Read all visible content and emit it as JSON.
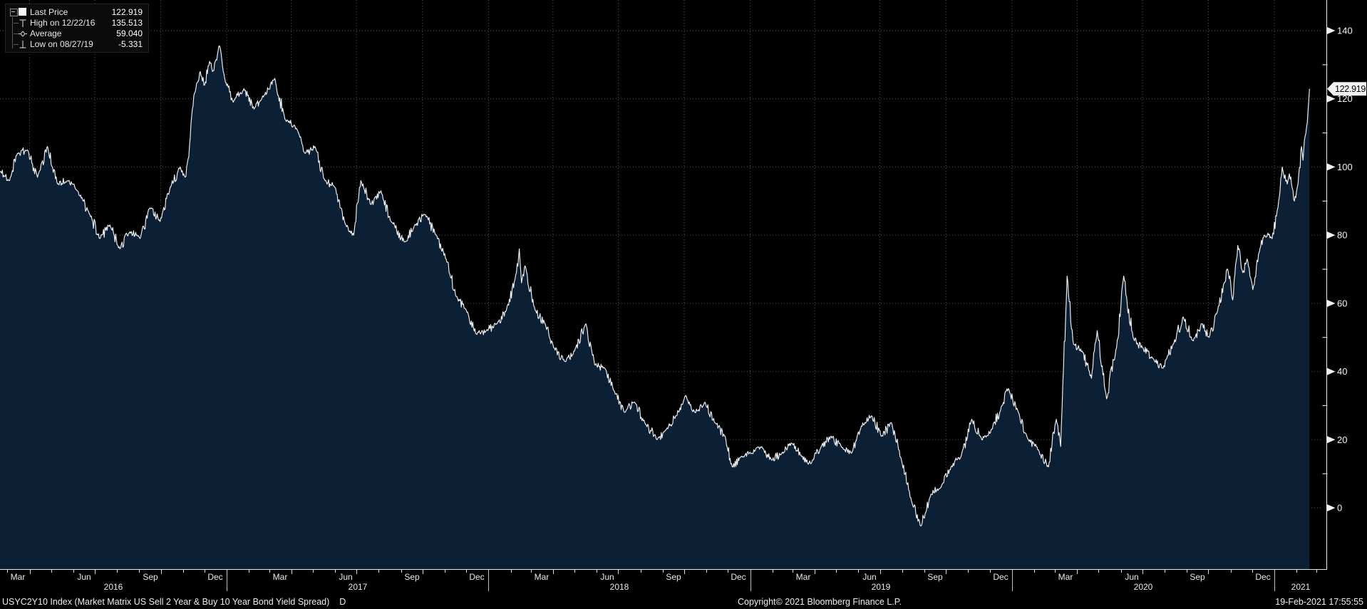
{
  "accent_colors": {
    "area_fill": "#0c2035",
    "line": "#f0f2f4",
    "grid": "#54585e",
    "axis": "#e8e8e8",
    "tag_bg": "#f2f2f2",
    "tag_text": "#000000"
  },
  "legend": {
    "rows": [
      {
        "glyph": "square-marker",
        "label": "Last Price",
        "value": "122.919"
      },
      {
        "glyph": "high-tack-icon",
        "label": "High on 12/22/16",
        "value": "135.513"
      },
      {
        "glyph": "average-diamond-icon",
        "label": "Average",
        "value": "59.040"
      },
      {
        "glyph": "low-tack-icon",
        "label": "Low on 08/27/19",
        "value": "-5.331"
      }
    ]
  },
  "price_tag": {
    "value": "122.919"
  },
  "y_axis": {
    "tick_labels": [
      0,
      20,
      40,
      60,
      80,
      100,
      120,
      140
    ]
  },
  "x_axis": {
    "month_labels": [
      {
        "text": "Mar",
        "date": "2016-03-16"
      },
      {
        "text": "Jun",
        "date": "2016-06-16"
      },
      {
        "text": "Sep",
        "date": "2016-09-16"
      },
      {
        "text": "Dec",
        "date": "2016-12-16"
      },
      {
        "text": "Mar",
        "date": "2017-03-16"
      },
      {
        "text": "Jun",
        "date": "2017-06-16"
      },
      {
        "text": "Sep",
        "date": "2017-09-16"
      },
      {
        "text": "Dec",
        "date": "2017-12-16"
      },
      {
        "text": "Mar",
        "date": "2018-03-16"
      },
      {
        "text": "Jun",
        "date": "2018-06-16"
      },
      {
        "text": "Sep",
        "date": "2018-09-16"
      },
      {
        "text": "Dec",
        "date": "2018-12-16"
      },
      {
        "text": "Mar",
        "date": "2019-03-16"
      },
      {
        "text": "Jun",
        "date": "2019-06-16"
      },
      {
        "text": "Sep",
        "date": "2019-09-16"
      },
      {
        "text": "Dec",
        "date": "2019-12-16"
      },
      {
        "text": "Mar",
        "date": "2020-03-16"
      },
      {
        "text": "Jun",
        "date": "2020-06-16"
      },
      {
        "text": "Sep",
        "date": "2020-09-16"
      },
      {
        "text": "Dec",
        "date": "2020-12-16"
      }
    ],
    "year_labels": [
      "2016",
      "2017",
      "2018",
      "2019",
      "2020",
      "2021"
    ]
  },
  "statusbar": {
    "left": "USYC2Y10 Index (Market Matrix US Sell 2 Year & Buy 10 Year Bond Yield Spread)",
    "periodicity": "D",
    "copyright": "Copyright© 2021 Bloomberg Finance L.P.",
    "timestamp": "19-Feb-2021 17:55:55"
  },
  "chart_data": {
    "type": "area",
    "title": "USYC2Y10 Index (Market Matrix US Sell 2 Year & Buy 10 Year Bond Yield Spread)",
    "xlabel": "",
    "ylabel": "",
    "x_range": [
      "2016-02-19",
      "2021-02-19"
    ],
    "ylim": [
      -18,
      149
    ],
    "y_ticks": [
      0,
      20,
      40,
      60,
      80,
      100,
      120,
      140
    ],
    "grid": "dotted, horizontal at ticks and vertical at quarter boundaries",
    "legend_position": "top-left",
    "stats": {
      "last": 122.919,
      "high": {
        "date": "12/22/16",
        "value": 135.513
      },
      "average": 59.04,
      "low": {
        "date": "08/27/19",
        "value": -5.331
      }
    },
    "series": [
      {
        "name": "Last Price",
        "style": "white line with dark navy area fill",
        "points": [
          [
            "2016-02-19",
            99
          ],
          [
            "2016-03-04",
            96
          ],
          [
            "2016-03-15",
            104
          ],
          [
            "2016-03-29",
            105
          ],
          [
            "2016-04-12",
            97
          ],
          [
            "2016-04-26",
            106
          ],
          [
            "2016-05-10",
            95
          ],
          [
            "2016-05-24",
            96
          ],
          [
            "2016-06-07",
            93
          ],
          [
            "2016-06-24",
            86
          ],
          [
            "2016-07-08",
            79
          ],
          [
            "2016-07-22",
            83
          ],
          [
            "2016-08-05",
            76
          ],
          [
            "2016-08-19",
            81
          ],
          [
            "2016-09-02",
            79
          ],
          [
            "2016-09-16",
            88
          ],
          [
            "2016-09-30",
            84
          ],
          [
            "2016-10-14",
            94
          ],
          [
            "2016-10-28",
            100
          ],
          [
            "2016-11-04",
            97
          ],
          [
            "2016-11-09",
            103
          ],
          [
            "2016-11-14",
            117
          ],
          [
            "2016-11-18",
            122
          ],
          [
            "2016-11-25",
            128
          ],
          [
            "2016-12-01",
            124
          ],
          [
            "2016-12-08",
            131
          ],
          [
            "2016-12-12",
            128
          ],
          [
            "2016-12-16",
            131
          ],
          [
            "2016-12-22",
            135.513
          ],
          [
            "2016-12-30",
            125
          ],
          [
            "2017-01-10",
            119
          ],
          [
            "2017-01-25",
            123
          ],
          [
            "2017-02-08",
            117
          ],
          [
            "2017-02-22",
            121
          ],
          [
            "2017-03-09",
            126
          ],
          [
            "2017-03-23",
            114
          ],
          [
            "2017-04-06",
            112
          ],
          [
            "2017-04-20",
            104
          ],
          [
            "2017-05-04",
            106
          ],
          [
            "2017-05-18",
            96
          ],
          [
            "2017-06-01",
            94
          ],
          [
            "2017-06-16",
            83
          ],
          [
            "2017-06-27",
            80
          ],
          [
            "2017-07-07",
            96
          ],
          [
            "2017-07-21",
            89
          ],
          [
            "2017-08-04",
            93
          ],
          [
            "2017-08-18",
            84
          ],
          [
            "2017-09-06",
            78
          ],
          [
            "2017-09-20",
            83
          ],
          [
            "2017-10-05",
            86
          ],
          [
            "2017-10-20",
            80
          ],
          [
            "2017-11-03",
            73
          ],
          [
            "2017-11-17",
            62
          ],
          [
            "2017-12-01",
            58
          ],
          [
            "2017-12-15",
            51
          ],
          [
            "2017-12-29",
            52
          ],
          [
            "2018-01-12",
            54
          ],
          [
            "2018-01-26",
            58
          ],
          [
            "2018-02-09",
            69
          ],
          [
            "2018-02-13",
            76
          ],
          [
            "2018-02-16",
            66
          ],
          [
            "2018-02-21",
            71
          ],
          [
            "2018-03-07",
            58
          ],
          [
            "2018-03-21",
            54
          ],
          [
            "2018-04-02",
            47
          ],
          [
            "2018-04-17",
            43
          ],
          [
            "2018-05-01",
            46
          ],
          [
            "2018-05-17",
            54
          ],
          [
            "2018-05-29",
            42
          ],
          [
            "2018-06-12",
            41
          ],
          [
            "2018-06-26",
            34
          ],
          [
            "2018-07-10",
            28
          ],
          [
            "2018-07-24",
            31
          ],
          [
            "2018-08-07",
            25
          ],
          [
            "2018-08-24",
            20
          ],
          [
            "2018-09-06",
            23
          ],
          [
            "2018-09-20",
            27
          ],
          [
            "2018-10-03",
            33
          ],
          [
            "2018-10-16",
            28
          ],
          [
            "2018-10-30",
            31
          ],
          [
            "2018-11-13",
            25
          ],
          [
            "2018-11-27",
            21
          ],
          [
            "2018-12-07",
            12
          ],
          [
            "2018-12-19",
            15
          ],
          [
            "2019-01-03",
            16
          ],
          [
            "2019-01-17",
            18
          ],
          [
            "2019-01-31",
            14
          ],
          [
            "2019-02-14",
            16
          ],
          [
            "2019-02-28",
            19
          ],
          [
            "2019-03-14",
            15
          ],
          [
            "2019-03-27",
            13
          ],
          [
            "2019-04-10",
            18
          ],
          [
            "2019-04-24",
            21
          ],
          [
            "2019-05-08",
            18
          ],
          [
            "2019-05-22",
            16
          ],
          [
            "2019-06-05",
            24
          ],
          [
            "2019-06-19",
            27
          ],
          [
            "2019-07-03",
            21
          ],
          [
            "2019-07-17",
            25
          ],
          [
            "2019-07-31",
            14
          ],
          [
            "2019-08-14",
            2
          ],
          [
            "2019-08-27",
            -5.331
          ],
          [
            "2019-09-10",
            4
          ],
          [
            "2019-09-24",
            6
          ],
          [
            "2019-10-08",
            12
          ],
          [
            "2019-10-22",
            15
          ],
          [
            "2019-11-06",
            26
          ],
          [
            "2019-11-20",
            20
          ],
          [
            "2019-12-04",
            23
          ],
          [
            "2019-12-18",
            30
          ],
          [
            "2019-12-27",
            35
          ],
          [
            "2020-01-10",
            28
          ],
          [
            "2020-01-24",
            20
          ],
          [
            "2020-02-07",
            17
          ],
          [
            "2020-02-21",
            12
          ],
          [
            "2020-03-03",
            26
          ],
          [
            "2020-03-09",
            18
          ],
          [
            "2020-03-18",
            68
          ],
          [
            "2020-03-27",
            48
          ],
          [
            "2020-04-08",
            46
          ],
          [
            "2020-04-21",
            38
          ],
          [
            "2020-04-29",
            52
          ],
          [
            "2020-05-12",
            32
          ],
          [
            "2020-05-26",
            47
          ],
          [
            "2020-06-05",
            68
          ],
          [
            "2020-06-18",
            50
          ],
          [
            "2020-07-01",
            47
          ],
          [
            "2020-07-15",
            44
          ],
          [
            "2020-07-30",
            41
          ],
          [
            "2020-08-13",
            48
          ],
          [
            "2020-08-27",
            56
          ],
          [
            "2020-09-10",
            49
          ],
          [
            "2020-09-22",
            54
          ],
          [
            "2020-10-02",
            50
          ],
          [
            "2020-10-14",
            58
          ],
          [
            "2020-10-23",
            66
          ],
          [
            "2020-10-28",
            70
          ],
          [
            "2020-11-04",
            61
          ],
          [
            "2020-11-11",
            77
          ],
          [
            "2020-11-18",
            69
          ],
          [
            "2020-11-24",
            73
          ],
          [
            "2020-12-02",
            64
          ],
          [
            "2020-12-11",
            75
          ],
          [
            "2020-12-18",
            80
          ],
          [
            "2020-12-29",
            79
          ],
          [
            "2021-01-06",
            88
          ],
          [
            "2021-01-12",
            100
          ],
          [
            "2021-01-19",
            95
          ],
          [
            "2021-01-22",
            98
          ],
          [
            "2021-01-29",
            90
          ],
          [
            "2021-02-03",
            95
          ],
          [
            "2021-02-08",
            106
          ],
          [
            "2021-02-10",
            102
          ],
          [
            "2021-02-12",
            108
          ],
          [
            "2021-02-16",
            113
          ],
          [
            "2021-02-19",
            122.919
          ]
        ]
      }
    ]
  }
}
